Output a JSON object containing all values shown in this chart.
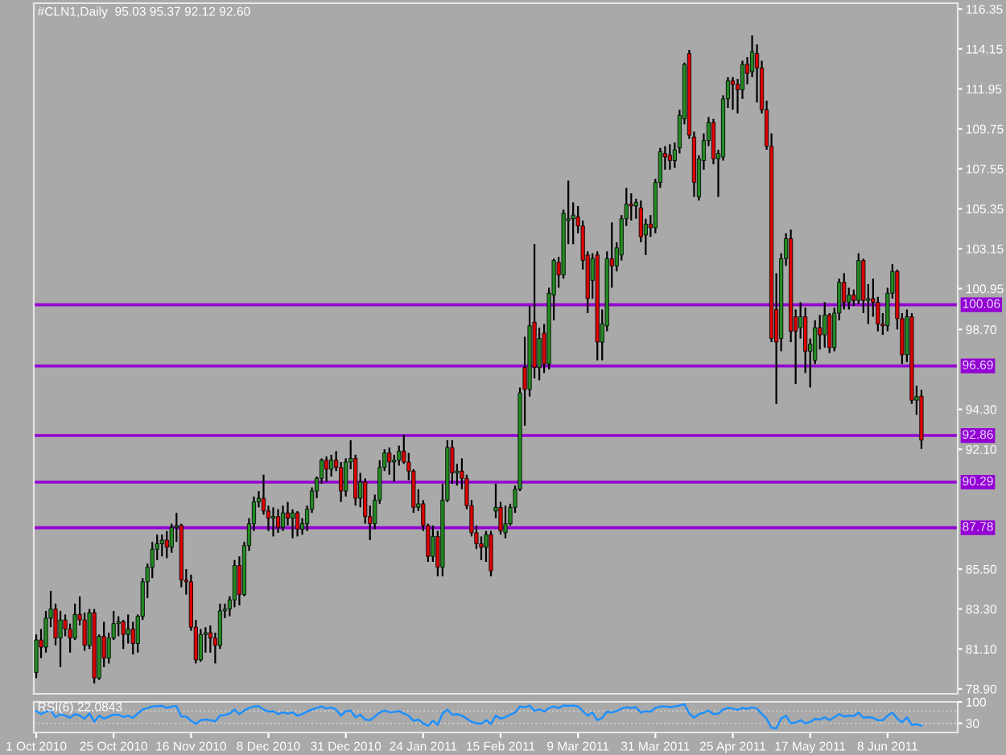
{
  "chart_data": [
    {
      "type": "candlestick",
      "title": "#CLN1,Daily  95.03 95.37 92.12 92.60",
      "tick_labels": "y",
      "categories": [
        null,
        null,
        null,
        null,
        null,
        null,
        null,
        null,
        null,
        null,
        null,
        null,
        null,
        null,
        null,
        null,
        null,
        null,
        null,
        null,
        null,
        null,
        null,
        null,
        null,
        null,
        null,
        null,
        null,
        null,
        null,
        null,
        null,
        null,
        null,
        null,
        null,
        null,
        null,
        null,
        null,
        null,
        null,
        null,
        null,
        null,
        null,
        null,
        null,
        null,
        null,
        null,
        null,
        null,
        null,
        null,
        null,
        null,
        null,
        null,
        null,
        null,
        null,
        null,
        null,
        null,
        null,
        null,
        null,
        null,
        null,
        null,
        null,
        null,
        null,
        null,
        null,
        null,
        null,
        null,
        null,
        null,
        null,
        null,
        null,
        null,
        null,
        null,
        null,
        null,
        null,
        null,
        null,
        null,
        null,
        null,
        null,
        null,
        null,
        null,
        null,
        null,
        null,
        null,
        null,
        null,
        null,
        null,
        null,
        null,
        null,
        null,
        null,
        null,
        null,
        null,
        null,
        null,
        null,
        null,
        null,
        null,
        null,
        null,
        null,
        null,
        null,
        null,
        null,
        null,
        null,
        null,
        null,
        null,
        null,
        null,
        null,
        null,
        null,
        null,
        null,
        null,
        null,
        null,
        null,
        null,
        null,
        null,
        null,
        null,
        null,
        null,
        null,
        null,
        null,
        null,
        null,
        null,
        null,
        null,
        null,
        null,
        null,
        null,
        null,
        null,
        null,
        null,
        null,
        null,
        null,
        null,
        null,
        null,
        null,
        null,
        null,
        null,
        null,
        null,
        null,
        null,
        null,
        null,
        null,
        null,
        null,
        null,
        null,
        null,
        null
      ],
      "ohlc": [
        [
          79.8,
          81.9,
          79.5,
          81.6
        ],
        [
          81.6,
          82.2,
          80.6,
          81.2
        ],
        [
          81.2,
          83.2,
          80.9,
          82.8
        ],
        [
          82.8,
          84.3,
          82.3,
          83.3
        ],
        [
          83.3,
          83.6,
          81.3,
          81.7
        ],
        [
          81.7,
          83.2,
          80.1,
          82.7
        ],
        [
          82.7,
          83.0,
          81.8,
          82.2
        ],
        [
          82.2,
          82.5,
          80.9,
          81.7
        ],
        [
          81.7,
          83.6,
          81.6,
          83.0
        ],
        [
          83.0,
          84.0,
          82.4,
          82.7
        ],
        [
          82.7,
          83.1,
          81.0,
          81.3
        ],
        [
          81.3,
          83.3,
          81.1,
          83.1
        ],
        [
          83.1,
          83.3,
          79.2,
          79.5
        ],
        [
          79.5,
          81.9,
          79.4,
          81.8
        ],
        [
          81.8,
          82.6,
          80.1,
          80.6
        ],
        [
          80.6,
          82.0,
          80.3,
          81.7
        ],
        [
          81.7,
          83.2,
          81.6,
          82.5
        ],
        [
          82.5,
          82.9,
          81.8,
          82.6
        ],
        [
          82.6,
          82.7,
          81.1,
          81.9
        ],
        [
          81.9,
          83.0,
          81.4,
          82.2
        ],
        [
          82.2,
          82.6,
          80.8,
          81.4
        ],
        [
          81.4,
          83.0,
          80.9,
          82.9
        ],
        [
          82.9,
          85.0,
          82.7,
          84.8
        ],
        [
          84.8,
          85.8,
          83.9,
          85.6
        ],
        [
          85.6,
          87.0,
          85.0,
          86.6
        ],
        [
          86.6,
          87.4,
          86.0,
          86.9
        ],
        [
          86.9,
          87.4,
          86.2,
          87.1
        ],
        [
          87.1,
          87.6,
          86.1,
          86.7
        ],
        [
          86.7,
          88.0,
          86.4,
          87.8
        ],
        [
          87.8,
          88.6,
          87.0,
          87.9
        ],
        [
          87.9,
          88.0,
          84.5,
          84.9
        ],
        [
          84.9,
          85.5,
          84.1,
          84.8
        ],
        [
          84.8,
          85.2,
          82.1,
          82.3
        ],
        [
          82.3,
          82.7,
          80.3,
          80.5
        ],
        [
          80.5,
          82.2,
          80.4,
          81.9
        ],
        [
          81.9,
          82.3,
          80.9,
          82.0
        ],
        [
          82.0,
          82.4,
          80.9,
          81.7
        ],
        [
          81.7,
          82.0,
          80.3,
          81.3
        ],
        [
          81.3,
          83.6,
          81.1,
          83.2
        ],
        [
          83.2,
          83.6,
          82.8,
          83.3
        ],
        [
          83.3,
          84.0,
          82.9,
          83.8
        ],
        [
          83.8,
          86.0,
          83.4,
          85.7
        ],
        [
          85.7,
          86.2,
          83.5,
          84.1
        ],
        [
          84.1,
          87.0,
          84.0,
          86.8
        ],
        [
          86.8,
          88.3,
          86.5,
          88.0
        ],
        [
          88.0,
          89.5,
          87.6,
          89.2
        ],
        [
          89.2,
          89.8,
          88.9,
          89.4
        ],
        [
          89.4,
          90.7,
          88.5,
          88.7
        ],
        [
          88.7,
          89.0,
          87.6,
          88.3
        ],
        [
          88.3,
          88.9,
          87.3,
          88.4
        ],
        [
          88.4,
          88.8,
          87.5,
          87.8
        ],
        [
          87.8,
          89.0,
          87.6,
          88.6
        ],
        [
          88.6,
          89.2,
          87.9,
          88.3
        ],
        [
          88.3,
          88.8,
          87.2,
          88.6
        ],
        [
          88.6,
          88.7,
          87.3,
          87.7
        ],
        [
          87.7,
          88.3,
          87.4,
          88.0
        ],
        [
          88.0,
          89.0,
          87.6,
          88.8
        ],
        [
          88.8,
          90.0,
          88.6,
          89.8
        ],
        [
          89.8,
          90.6,
          89.4,
          90.5
        ],
        [
          90.5,
          91.6,
          90.2,
          91.5
        ],
        [
          91.5,
          91.7,
          90.3,
          91.0
        ],
        [
          91.0,
          91.8,
          90.6,
          91.5
        ],
        [
          91.5,
          92.0,
          90.9,
          91.1
        ],
        [
          91.1,
          91.4,
          89.2,
          89.8
        ],
        [
          89.8,
          91.6,
          89.5,
          91.4
        ],
        [
          91.4,
          92.6,
          91.0,
          91.6
        ],
        [
          91.6,
          91.8,
          89.0,
          89.4
        ],
        [
          89.4,
          90.8,
          88.9,
          90.3
        ],
        [
          90.3,
          90.5,
          88.0,
          88.4
        ],
        [
          88.4,
          89.0,
          87.1,
          88.0
        ],
        [
          88.0,
          89.6,
          87.7,
          89.3
        ],
        [
          89.3,
          91.5,
          89.1,
          91.1
        ],
        [
          91.1,
          92.1,
          90.9,
          91.9
        ],
        [
          91.9,
          92.2,
          90.7,
          91.4
        ],
        [
          91.4,
          91.8,
          90.3,
          91.5
        ],
        [
          91.5,
          92.3,
          91.2,
          92.0
        ],
        [
          92.0,
          92.9,
          91.3,
          91.4
        ],
        [
          91.4,
          91.9,
          90.4,
          90.9
        ],
        [
          90.9,
          91.0,
          88.6,
          88.9
        ],
        [
          88.9,
          89.9,
          88.7,
          89.1
        ],
        [
          89.1,
          89.3,
          87.6,
          87.9
        ],
        [
          87.9,
          88.0,
          85.9,
          86.2
        ],
        [
          86.2,
          87.9,
          85.9,
          87.3
        ],
        [
          87.3,
          87.6,
          85.1,
          85.6
        ],
        [
          85.6,
          90.2,
          85.1,
          89.3
        ],
        [
          89.3,
          92.6,
          89.2,
          92.2
        ],
        [
          92.2,
          92.6,
          90.2,
          90.8
        ],
        [
          90.8,
          91.3,
          90.1,
          90.9
        ],
        [
          90.9,
          91.6,
          89.9,
          90.5
        ],
        [
          90.5,
          90.7,
          88.8,
          89.0
        ],
        [
          89.0,
          89.3,
          87.3,
          87.5
        ],
        [
          87.5,
          87.9,
          86.6,
          86.9
        ],
        [
          86.9,
          87.3,
          86.0,
          86.7
        ],
        [
          86.7,
          87.6,
          85.9,
          87.4
        ],
        [
          87.4,
          87.6,
          85.1,
          85.4
        ],
        [
          88.7,
          90.2,
          88.3,
          88.9
        ],
        [
          88.9,
          89.2,
          87.4,
          87.6
        ],
        [
          87.5,
          89.0,
          87.2,
          88.0
        ],
        [
          88.0,
          89.1,
          87.9,
          88.9
        ],
        [
          88.9,
          90.1,
          88.6,
          89.9
        ],
        [
          89.9,
          95.5,
          89.8,
          95.2
        ],
        [
          96.6,
          98.3,
          93.4,
          95.4
        ],
        [
          95.4,
          100.0,
          95.0,
          98.9
        ],
        [
          99.1,
          103.4,
          96.0,
          96.6
        ],
        [
          96.6,
          98.8,
          95.9,
          98.2
        ],
        [
          98.5,
          99.0,
          96.3,
          96.8
        ],
        [
          96.8,
          101.0,
          96.5,
          100.7
        ],
        [
          100.6,
          102.6,
          99.2,
          102.5
        ],
        [
          102.4,
          102.7,
          101.0,
          101.7
        ],
        [
          101.7,
          105.3,
          101.5,
          105.1
        ],
        [
          104.7,
          106.9,
          103.4,
          104.8
        ],
        [
          104.8,
          105.7,
          103.4,
          105.0
        ],
        [
          104.9,
          105.5,
          104.0,
          104.4
        ],
        [
          104.4,
          104.7,
          102.0,
          102.5
        ],
        [
          102.8,
          103.0,
          99.6,
          100.4
        ],
        [
          101.4,
          102.9,
          100.4,
          102.6
        ],
        [
          102.8,
          103.0,
          97.0,
          98.0
        ],
        [
          98.0,
          99.8,
          97.0,
          99.0
        ],
        [
          98.9,
          103.0,
          98.6,
          102.6
        ],
        [
          102.6,
          104.6,
          101.0,
          102.2
        ],
        [
          102.2,
          103.5,
          101.9,
          103.2
        ],
        [
          102.8,
          105.0,
          102.5,
          104.8
        ],
        [
          104.8,
          106.5,
          104.4,
          105.6
        ],
        [
          105.6,
          106.2,
          104.7,
          105.5
        ],
        [
          105.5,
          105.9,
          104.8,
          105.7
        ],
        [
          105.4,
          105.8,
          103.5,
          103.8
        ],
        [
          103.9,
          104.8,
          102.8,
          104.5
        ],
        [
          104.5,
          105.0,
          103.8,
          104.3
        ],
        [
          104.3,
          107.0,
          104.0,
          106.8
        ],
        [
          106.8,
          108.7,
          106.5,
          108.5
        ],
        [
          108.4,
          108.8,
          107.5,
          108.2
        ],
        [
          108.3,
          108.9,
          107.5,
          108.0
        ],
        [
          108.0,
          109.0,
          107.6,
          108.6
        ],
        [
          108.7,
          110.8,
          108.4,
          110.5
        ],
        [
          110.3,
          113.4,
          110.0,
          113.3
        ],
        [
          113.9,
          114.1,
          109.2,
          109.4
        ],
        [
          109.3,
          109.6,
          106.0,
          106.8
        ],
        [
          106.0,
          108.3,
          105.8,
          108.1
        ],
        [
          108.0,
          109.5,
          107.5,
          109.1
        ],
        [
          109.1,
          110.4,
          108.8,
          110.1
        ],
        [
          110.1,
          110.3,
          107.8,
          108.1
        ],
        [
          108.1,
          108.6,
          106.0,
          108.4
        ],
        [
          108.2,
          111.6,
          108.0,
          111.4
        ],
        [
          111.4,
          112.6,
          110.9,
          112.4
        ],
        [
          112.4,
          112.6,
          110.8,
          112.2
        ],
        [
          112.2,
          112.5,
          110.6,
          111.9
        ],
        [
          111.9,
          113.5,
          111.4,
          113.3
        ],
        [
          113.3,
          113.7,
          112.2,
          112.8
        ],
        [
          112.9,
          114.9,
          112.6,
          114.0
        ],
        [
          113.9,
          114.4,
          111.2,
          113.1
        ],
        [
          113.1,
          113.5,
          110.6,
          110.8
        ],
        [
          110.8,
          111.3,
          108.6,
          108.8
        ],
        [
          108.8,
          109.5,
          98.0,
          98.2
        ],
        [
          99.8,
          101.8,
          94.6,
          98.0
        ],
        [
          98.2,
          102.9,
          97.5,
          102.6
        ],
        [
          102.6,
          104.0,
          102.2,
          103.7
        ],
        [
          103.7,
          104.2,
          98.0,
          98.6
        ],
        [
          99.4,
          99.8,
          95.7,
          98.6
        ],
        [
          98.8,
          100.2,
          98.2,
          99.4
        ],
        [
          99.4,
          99.9,
          96.3,
          97.5
        ],
        [
          97.5,
          98.2,
          95.5,
          97.9
        ],
        [
          97.0,
          99.2,
          96.8,
          98.8
        ],
        [
          98.8,
          99.5,
          97.6,
          98.4
        ],
        [
          98.4,
          100.2,
          97.7,
          99.5
        ],
        [
          99.5,
          99.6,
          97.4,
          97.7
        ],
        [
          97.7,
          99.9,
          97.5,
          99.6
        ],
        [
          99.6,
          101.5,
          99.2,
          101.3
        ],
        [
          101.3,
          101.8,
          99.8,
          100.2
        ],
        [
          100.2,
          101.0,
          99.8,
          100.6
        ],
        [
          100.6,
          100.9,
          100.0,
          100.3
        ],
        [
          100.3,
          102.9,
          100.1,
          102.5
        ],
        [
          102.5,
          102.6,
          99.6,
          100.3
        ],
        [
          100.3,
          101.2,
          99.0,
          100.4
        ],
        [
          100.4,
          101.5,
          99.4,
          100.2
        ],
        [
          100.2,
          100.5,
          98.6,
          99.0
        ],
        [
          99.0,
          99.6,
          98.4,
          98.9
        ],
        [
          98.9,
          101.0,
          98.6,
          100.7
        ],
        [
          100.7,
          102.3,
          100.4,
          101.9
        ],
        [
          101.9,
          102.0,
          98.7,
          99.3
        ],
        [
          99.3,
          99.6,
          96.8,
          97.3
        ],
        [
          97.3,
          99.8,
          96.9,
          99.4
        ],
        [
          99.4,
          99.6,
          94.6,
          94.8
        ],
        [
          94.8,
          95.6,
          94.0,
          95.0
        ],
        [
          95.03,
          95.37,
          92.12,
          92.6
        ],
        null,
        null,
        null,
        null,
        null,
        null,
        null
      ],
      "colors": [
        "#228b22",
        "#dd0000",
        "#228b22",
        "#228b22",
        "#dd0000",
        "#228b22",
        "#dd0000",
        "#dd0000",
        "#228b22",
        "#dd0000",
        "#dd0000",
        "#228b22",
        "#dd0000",
        "#228b22",
        "#dd0000",
        "#228b22",
        "#228b22",
        "#228b22",
        "#dd0000",
        "#228b22",
        "#dd0000",
        "#228b22",
        "#228b22",
        "#228b22",
        "#228b22",
        "#228b22",
        "#228b22",
        "#dd0000",
        "#228b22",
        "#228b22",
        "#dd0000",
        "#dd0000",
        "#dd0000",
        "#dd0000",
        "#228b22",
        "#228b22",
        "#dd0000",
        "#dd0000",
        "#228b22",
        "#228b22",
        "#228b22",
        "#228b22",
        "#dd0000",
        "#228b22",
        "#228b22",
        "#228b22",
        "#228b22",
        "#dd0000",
        "#dd0000",
        "#228b22",
        "#dd0000",
        "#228b22",
        "#dd0000",
        "#228b22",
        "#dd0000",
        "#228b22",
        "#228b22",
        "#228b22",
        "#228b22",
        "#228b22",
        "#dd0000",
        "#228b22",
        "#dd0000",
        "#dd0000",
        "#228b22",
        "#228b22",
        "#dd0000",
        "#228b22",
        "#dd0000",
        "#dd0000",
        "#228b22",
        "#228b22",
        "#228b22",
        "#dd0000",
        "#228b22",
        "#228b22",
        "#dd0000",
        "#dd0000",
        "#dd0000",
        "#228b22",
        "#dd0000",
        "#dd0000",
        "#228b22",
        "#dd0000",
        "#228b22",
        "#228b22",
        "#dd0000",
        "#228b22",
        "#dd0000",
        "#dd0000",
        "#dd0000",
        "#dd0000",
        "#dd0000",
        "#228b22",
        "#dd0000",
        "#228b22",
        "#dd0000",
        "#228b22",
        "#228b22",
        "#228b22",
        "#228b22",
        "#dd0000",
        "#228b22",
        "#dd0000",
        "#228b22",
        "#dd0000",
        "#228b22",
        "#228b22",
        "#dd0000",
        "#228b22",
        "#228b22",
        "#228b22",
        "#dd0000",
        "#dd0000",
        "#dd0000",
        "#228b22",
        "#dd0000",
        "#228b22",
        "#228b22",
        "#dd0000",
        "#228b22",
        "#228b22",
        "#228b22",
        "#dd0000",
        "#228b22",
        "#dd0000",
        "#228b22",
        "#dd0000",
        "#228b22",
        "#228b22",
        "#dd0000",
        "#dd0000",
        "#228b22",
        "#228b22",
        "#228b22",
        "#dd0000",
        "#dd0000",
        "#228b22",
        "#228b22",
        "#228b22",
        "#dd0000",
        "#228b22",
        "#228b22",
        "#228b22",
        "#dd0000",
        "#dd0000",
        "#228b22",
        "#dd0000",
        "#228b22",
        "#dd0000",
        "#dd0000",
        "#dd0000",
        "#dd0000",
        "#dd0000",
        "#228b22",
        "#228b22",
        "#dd0000",
        "#dd0000",
        "#228b22",
        "#dd0000",
        "#228b22",
        "#228b22",
        "#dd0000",
        "#228b22",
        "#dd0000",
        "#228b22",
        "#228b22",
        "#dd0000",
        "#228b22",
        "#dd0000",
        "#228b22",
        "#dd0000",
        "#228b22",
        "#dd0000",
        "#dd0000",
        "#dd0000",
        "#228b22",
        "#228b22",
        "#dd0000",
        "#dd0000",
        "#228b22",
        "#dd0000",
        "#228b22",
        "#dd0000",
        null,
        null,
        null,
        null,
        null,
        null,
        null
      ],
      "ylim": [
        78.63,
        116.67
      ],
      "yticks": [
        116.35,
        114.15,
        111.95,
        109.75,
        107.55,
        105.35,
        103.15,
        100.95,
        {
          "value": 98.7,
          "label": "98.70"
        },
        {
          "value": 94.3,
          "label": "94.30"
        },
        {
          "value": 92.1,
          "label": "92.10"
        },
        {
          "value": 85.5,
          "label": "85.50"
        },
        {
          "value": 83.3,
          "label": "83.30"
        },
        {
          "value": 81.1,
          "label": "81.10"
        },
        {
          "value": 78.9,
          "label": "78.90"
        }
      ],
      "ref_lines": [
        {
          "axis": "y",
          "value": 100.06,
          "label": "100.06",
          "color": "#9400d3"
        },
        {
          "axis": "y",
          "value": 96.69,
          "label": "96.69",
          "color": "#9400d3"
        },
        {
          "axis": "y",
          "value": 92.86,
          "label": "92.86",
          "color": "#9400d3"
        },
        {
          "axis": "y",
          "value": 90.29,
          "label": "90.29",
          "color": "#9400d3"
        },
        {
          "axis": "y",
          "value": 87.78,
          "label": "87.78",
          "color": "#9400d3"
        }
      ]
    },
    {
      "type": "line",
      "title": "RSI(6) 22.0843",
      "categories": [
        "1 Oct 2010",
        null,
        null,
        null,
        null,
        null,
        null,
        null,
        null,
        null,
        null,
        null,
        null,
        null,
        null,
        null,
        "25 Oct 2010",
        null,
        null,
        null,
        null,
        null,
        null,
        null,
        null,
        null,
        null,
        null,
        null,
        null,
        null,
        null,
        "16 Nov 2010",
        null,
        null,
        null,
        null,
        null,
        null,
        null,
        null,
        null,
        null,
        null,
        null,
        null,
        null,
        null,
        "8 Dec 2010",
        null,
        null,
        null,
        null,
        null,
        null,
        null,
        null,
        null,
        null,
        null,
        null,
        null,
        null,
        null,
        "31 Dec 2010",
        null,
        null,
        null,
        null,
        null,
        null,
        null,
        null,
        null,
        null,
        null,
        null,
        null,
        null,
        null,
        "24 Jan 2011",
        null,
        null,
        null,
        null,
        null,
        null,
        null,
        null,
        null,
        null,
        null,
        null,
        null,
        null,
        null,
        "15 Feb 2011",
        null,
        null,
        null,
        null,
        null,
        null,
        null,
        null,
        null,
        null,
        null,
        null,
        null,
        null,
        null,
        "9 Mar 2011",
        null,
        null,
        null,
        null,
        null,
        null,
        null,
        null,
        null,
        null,
        null,
        null,
        null,
        null,
        null,
        "31 Mar 2011",
        null,
        null,
        null,
        null,
        null,
        null,
        null,
        null,
        null,
        null,
        null,
        null,
        null,
        null,
        null,
        "25 Apr 2011",
        null,
        null,
        null,
        null,
        null,
        null,
        null,
        null,
        null,
        null,
        null,
        null,
        null,
        null,
        null,
        "17 May 2011",
        null,
        null,
        null,
        null,
        null,
        null,
        null,
        null,
        null,
        null,
        null,
        null,
        null,
        null,
        null,
        "8 Jun 2011",
        null,
        null,
        null,
        null,
        null,
        null,
        null,
        null,
        null,
        null,
        null,
        null,
        null,
        null
      ],
      "series": [
        {
          "color": "#1e90ff",
          "values": [
            70,
            60,
            68,
            72,
            50,
            60,
            55,
            48,
            60,
            56,
            45,
            62,
            35,
            55,
            45,
            52,
            58,
            58,
            50,
            55,
            48,
            62,
            75,
            80,
            85,
            86,
            87,
            80,
            85,
            86,
            52,
            52,
            38,
            28,
            40,
            42,
            40,
            36,
            55,
            57,
            62,
            75,
            60,
            72,
            80,
            85,
            86,
            75,
            68,
            70,
            60,
            66,
            62,
            66,
            55,
            60,
            68,
            75,
            80,
            85,
            78,
            82,
            75,
            55,
            70,
            72,
            50,
            58,
            42,
            40,
            52,
            65,
            72,
            66,
            67,
            70,
            62,
            55,
            38,
            42,
            30,
            22,
            38,
            25,
            62,
            75,
            58,
            60,
            55,
            45,
            35,
            30,
            28,
            40,
            28,
            55,
            45,
            50,
            58,
            65,
            85,
            82,
            88,
            70,
            76,
            68,
            80,
            85,
            80,
            88,
            87,
            88,
            85,
            70,
            55,
            65,
            40,
            48,
            68,
            65,
            70,
            78,
            82,
            80,
            82,
            65,
            70,
            68,
            80,
            85,
            85,
            83,
            85,
            88,
            92,
            62,
            48,
            60,
            65,
            72,
            60,
            62,
            75,
            80,
            78,
            74,
            80,
            77,
            82,
            78,
            60,
            45,
            15,
            13,
            45,
            55,
            30,
            32,
            40,
            30,
            34,
            45,
            42,
            50,
            40,
            50,
            60,
            52,
            55,
            53,
            65,
            48,
            50,
            48,
            40,
            40,
            55,
            65,
            45,
            33,
            50,
            25,
            27,
            22.0843,
            null,
            null,
            null,
            null,
            null,
            null,
            null
          ]
        }
      ],
      "ylim": [
        0,
        100
      ],
      "yticks": [
        100,
        30
      ],
      "ref_lines": [
        {
          "axis": "y",
          "value": 70,
          "color": "#d0d0d0",
          "line_style": "dotted"
        },
        {
          "axis": "y",
          "value": 30,
          "color": "#d0d0d0",
          "line_style": "dotted"
        }
      ]
    }
  ]
}
